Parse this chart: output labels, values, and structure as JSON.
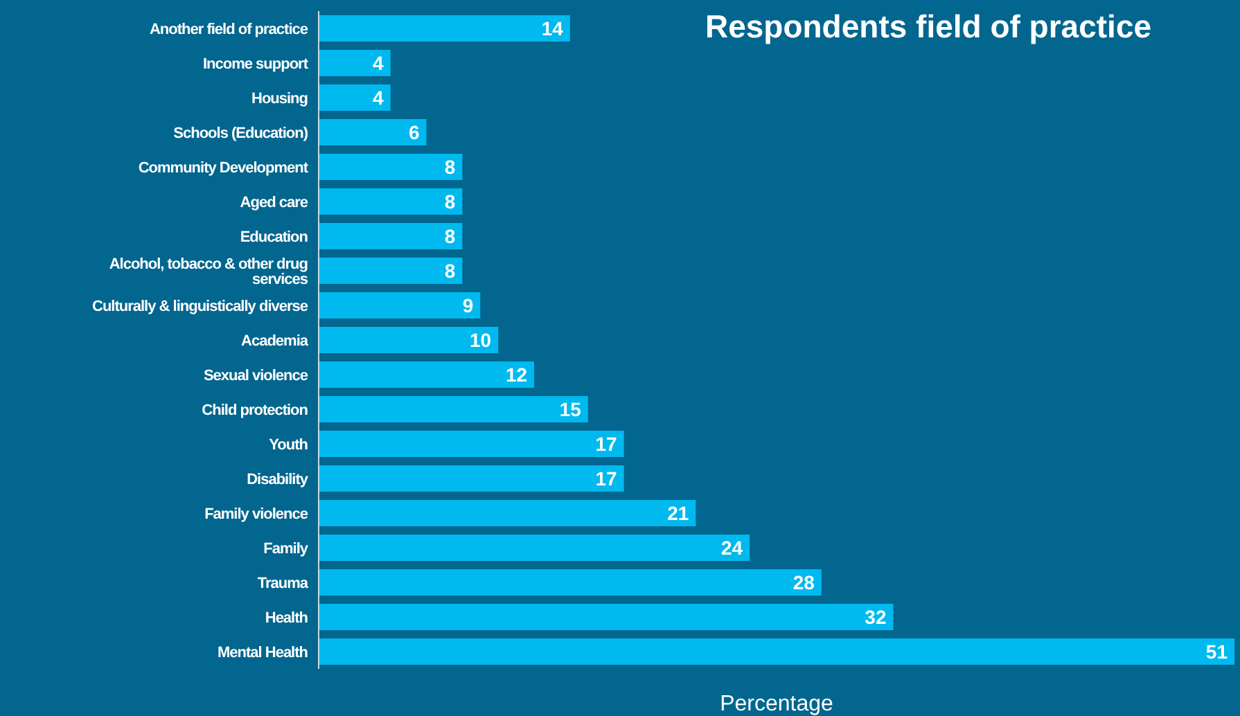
{
  "chart_data": {
    "type": "bar",
    "orientation": "horizontal",
    "title": "Respondents field of practice",
    "xlabel": "Percentage",
    "categories": [
      "Another field of practice",
      "Income support",
      "Housing",
      "Schools (Education)",
      "Community Development",
      "Aged care",
      "Education",
      "Alcohol, tobacco & other drug services",
      "Culturally & linguistically diverse",
      "Academia",
      "Sexual violence",
      "Child protection",
      "Youth",
      "Disability",
      "Family violence",
      "Family",
      "Trauma",
      "Health",
      "Mental Health"
    ],
    "values": [
      14,
      4,
      4,
      6,
      8,
      8,
      8,
      8,
      9,
      10,
      12,
      15,
      17,
      17,
      21,
      24,
      28,
      32,
      51
    ],
    "color": "#00b9ee",
    "data_labels": true,
    "xlim": [
      0,
      51
    ],
    "tick_labels": "y"
  }
}
